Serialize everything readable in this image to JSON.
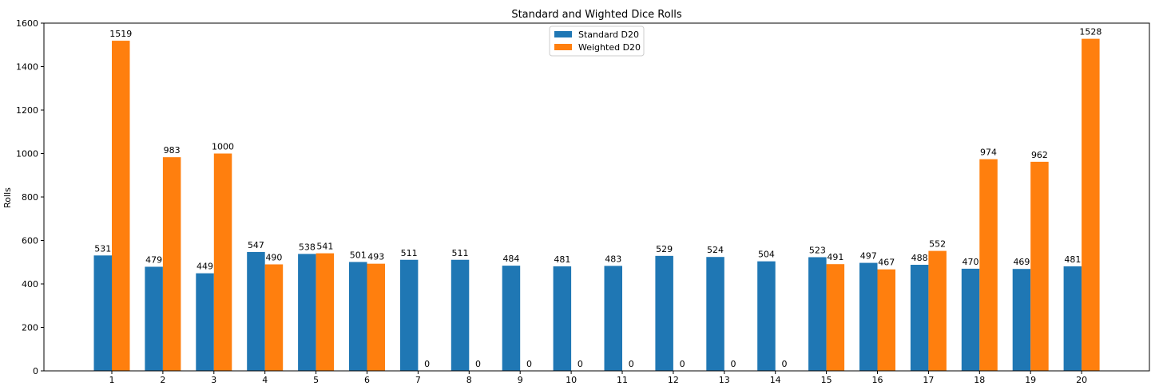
{
  "chart_data": {
    "type": "bar",
    "title": "Standard and Wighted Dice Rolls",
    "xlabel": "",
    "ylabel": "Rolls",
    "categories": [
      "1",
      "2",
      "3",
      "4",
      "5",
      "6",
      "7",
      "8",
      "9",
      "10",
      "11",
      "12",
      "13",
      "14",
      "15",
      "16",
      "17",
      "18",
      "19",
      "20"
    ],
    "series": [
      {
        "name": "Standard D20",
        "color": "#1f77b4",
        "values": [
          531,
          479,
          449,
          547,
          538,
          501,
          511,
          511,
          484,
          481,
          483,
          529,
          524,
          504,
          523,
          497,
          488,
          470,
          469,
          481
        ]
      },
      {
        "name": "Weighted D20",
        "color": "#ff7f0e",
        "values": [
          1519,
          983,
          1000,
          490,
          541,
          493,
          0,
          0,
          0,
          0,
          0,
          0,
          0,
          0,
          491,
          467,
          552,
          974,
          962,
          1528
        ]
      }
    ],
    "ylim": [
      0,
      1600
    ],
    "yticks": [
      0,
      200,
      400,
      600,
      800,
      1000,
      1200,
      1400,
      1600
    ],
    "grid": false,
    "legend": "top-center",
    "data_labels": true
  }
}
